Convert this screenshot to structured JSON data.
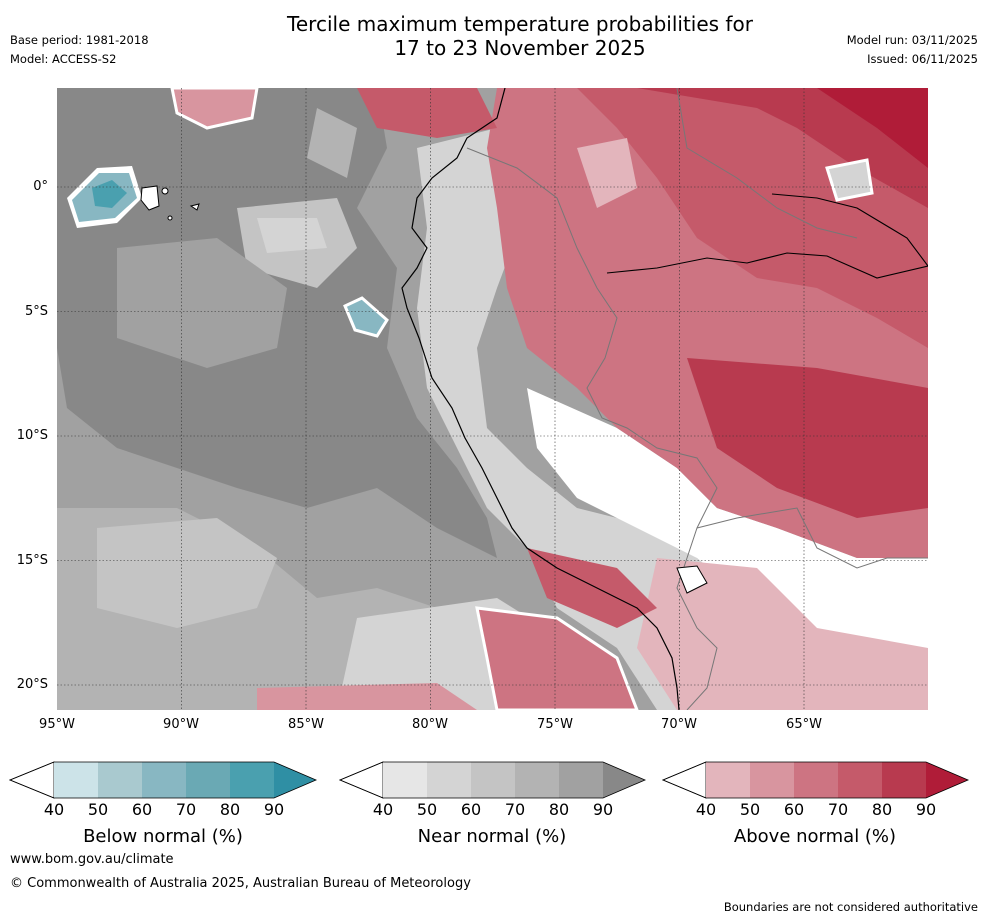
{
  "header": {
    "title_line1": "Tercile maximum temperature probabilities for",
    "title_line2": "17 to 23 November 2025",
    "base_period": "Base period: 1981-2018",
    "model": "Model: ACCESS-S2",
    "model_run": "Model run: 03/11/2025",
    "issued": "Issued: 06/11/2025"
  },
  "axes": {
    "lat_labels": [
      "0°",
      "5°S",
      "10°S",
      "15°S",
      "20°S"
    ],
    "lon_labels": [
      "95°W",
      "90°W",
      "85°W",
      "80°W",
      "75°W",
      "70°W",
      "65°W"
    ]
  },
  "colorbars": [
    {
      "title": "Below normal (%)",
      "ticks": [
        "40",
        "50",
        "60",
        "70",
        "80",
        "90"
      ],
      "colors": [
        "#cce3e8",
        "#a9c9cf",
        "#88b7c2",
        "#6aa9b4",
        "#4aa0af",
        "#2f8fa4"
      ]
    },
    {
      "title": "Near normal (%)",
      "ticks": [
        "40",
        "50",
        "60",
        "70",
        "80",
        "90"
      ],
      "colors": [
        "#e6e6e6",
        "#d4d4d4",
        "#c4c4c4",
        "#b3b3b3",
        "#a1a1a1",
        "#888888"
      ]
    },
    {
      "title": "Above normal (%)",
      "ticks": [
        "40",
        "50",
        "60",
        "70",
        "80",
        "90"
      ],
      "colors": [
        "#e3b5bc",
        "#d8959f",
        "#cd7482",
        "#c55a6a",
        "#b83a4f",
        "#b01c38"
      ]
    }
  ],
  "footer": {
    "website": "www.bom.gov.au/climate",
    "copyright": "© Commonwealth of Australia 2025, Australian Bureau of Meteorology",
    "disclaimer": "Boundaries are not considered authoritative"
  }
}
